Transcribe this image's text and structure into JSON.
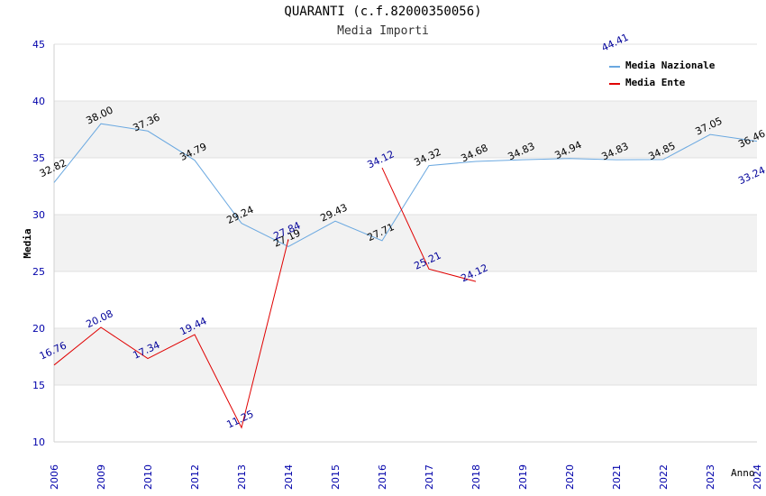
{
  "title": "QUARANTI (c.f.82000350056)",
  "subtitle": "Media Importi",
  "chart_data": {
    "type": "line",
    "title": "QUARANTI (c.f.82000350056)",
    "subtitle": "Media Importi",
    "xlabel": "Anno",
    "ylabel": "Media",
    "ylim": [
      10,
      45
    ],
    "yticks": [
      "10",
      "15",
      "20",
      "25",
      "30",
      "35",
      "40",
      "45"
    ],
    "categories": [
      "2006",
      "2009",
      "2010",
      "2012",
      "2013",
      "2014",
      "2015",
      "2016",
      "2017",
      "2018",
      "2019",
      "2020",
      "2021",
      "2022",
      "2023",
      "2024"
    ],
    "grid": true,
    "legend_position": "top-right",
    "series": [
      {
        "name": "Media Nazionale",
        "color": "#6aa8e0",
        "values": [
          32.82,
          38.0,
          37.36,
          34.79,
          29.24,
          27.19,
          29.43,
          27.71,
          34.32,
          34.68,
          34.83,
          34.94,
          34.83,
          34.85,
          37.05,
          36.46
        ],
        "labels": [
          "32.82",
          "38.00",
          "37.36",
          "34.79",
          "29.24",
          "27.19",
          "29.43",
          "27.71",
          "34.32",
          "34.68",
          "34.83",
          "34.94",
          "34.83",
          "34.85",
          "37.05",
          "36.46"
        ]
      },
      {
        "name": "Media Ente",
        "color": "#e00000",
        "values": [
          16.76,
          20.08,
          17.34,
          19.44,
          11.25,
          27.84,
          null,
          34.12,
          25.21,
          24.12,
          null,
          null,
          44.41,
          null,
          null,
          33.24
        ],
        "labels": [
          "16.76",
          "20.08",
          "17.34",
          "19.44",
          "11.25",
          "27.84",
          "",
          "34.12",
          "25.21",
          "24.12",
          "",
          "",
          "44.41",
          "",
          "",
          "33.24"
        ]
      }
    ]
  }
}
